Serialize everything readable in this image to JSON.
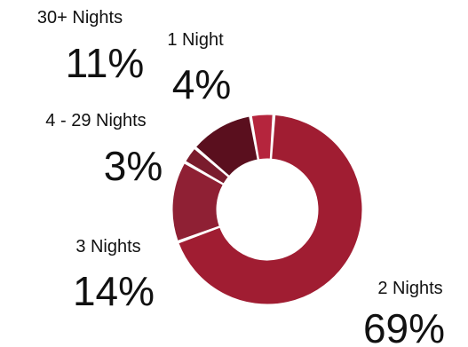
{
  "chart_data": {
    "type": "pie",
    "style": "donut",
    "categories": [
      "2 Nights",
      "3 Nights",
      "4 - 29 Nights",
      "30+ Nights",
      "1 Night"
    ],
    "values": [
      69,
      14,
      3,
      11,
      4
    ],
    "value_labels": [
      "69%",
      "14%",
      "3%",
      "11%",
      "4%"
    ],
    "colors": [
      "#a01d32",
      "#8f2034",
      "#7a1c2d",
      "#5a0f1e",
      "#b5253d"
    ],
    "legend": "none"
  }
}
